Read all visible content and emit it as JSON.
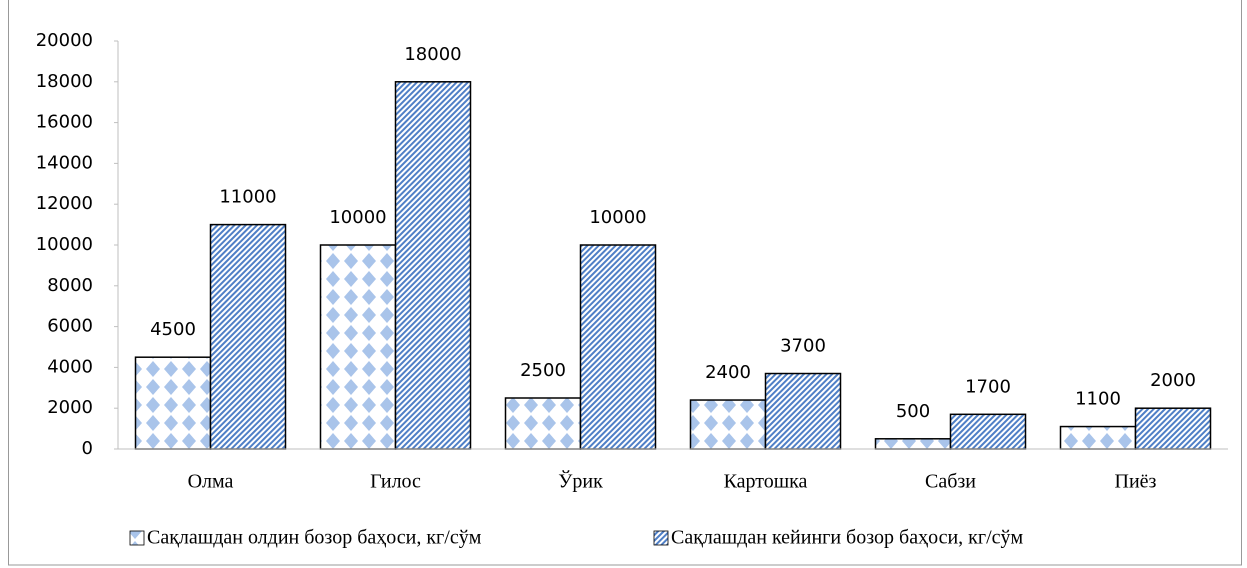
{
  "chart_data": {
    "type": "bar",
    "categories": [
      "Олма",
      "Гилос",
      "Ўрик",
      "Картошка",
      "Сабзи",
      "Пиёз"
    ],
    "series": [
      {
        "name": "Сақлашдан олдин бозор баҳоси, кг/сўм",
        "color": "#a9c4ea",
        "values": [
          4500,
          10000,
          2500,
          2400,
          500,
          1100
        ]
      },
      {
        "name": "Сақлашдан кейинги бозор баҳоси, кг/сўм",
        "color": "#4f7fc6",
        "values": [
          11000,
          18000,
          10000,
          3700,
          1700,
          2000
        ]
      }
    ],
    "ylim": [
      0,
      20000
    ],
    "yticks": [
      0,
      2000,
      4000,
      6000,
      8000,
      10000,
      12000,
      14000,
      16000,
      18000,
      20000
    ],
    "legend": "bottom"
  }
}
